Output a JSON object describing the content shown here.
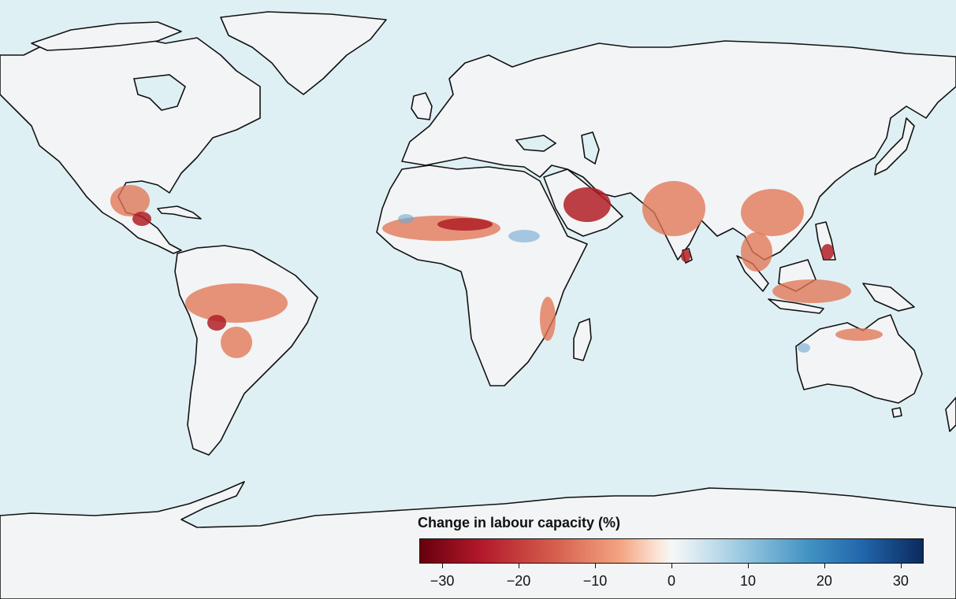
{
  "legend": {
    "title": "Change in labour capacity (%)",
    "min": -33,
    "max": 33,
    "ticks": [
      {
        "value": -30,
        "label": "−30"
      },
      {
        "value": -20,
        "label": "−20"
      },
      {
        "value": -10,
        "label": "−10"
      },
      {
        "value": 0,
        "label": "0"
      },
      {
        "value": 10,
        "label": "10"
      },
      {
        "value": 20,
        "label": "20"
      },
      {
        "value": 30,
        "label": "30"
      }
    ]
  },
  "colors": {
    "ocean": "#dff0f4",
    "land_no_change": "#f3f4f6",
    "coastline": "#111111",
    "loss_strong": "#67000d",
    "loss_moderate": "#d6604d",
    "gain_moderate": "#92c5de",
    "gain_strong": "#0b2a5c"
  }
}
